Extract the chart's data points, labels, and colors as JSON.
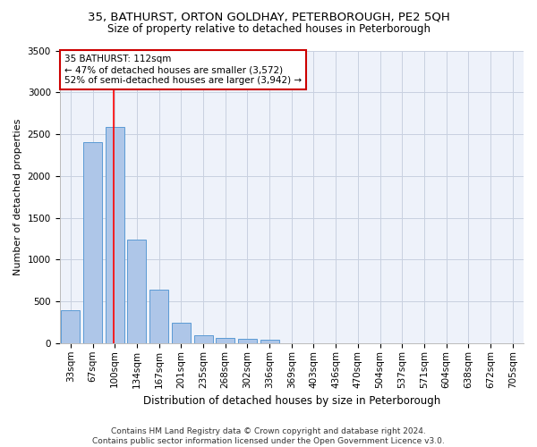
{
  "title": "35, BATHURST, ORTON GOLDHAY, PETERBOROUGH, PE2 5QH",
  "subtitle": "Size of property relative to detached houses in Peterborough",
  "xlabel": "Distribution of detached houses by size in Peterborough",
  "ylabel": "Number of detached properties",
  "categories": [
    "33sqm",
    "67sqm",
    "100sqm",
    "134sqm",
    "167sqm",
    "201sqm",
    "235sqm",
    "268sqm",
    "302sqm",
    "336sqm",
    "369sqm",
    "403sqm",
    "436sqm",
    "470sqm",
    "504sqm",
    "537sqm",
    "571sqm",
    "604sqm",
    "638sqm",
    "672sqm",
    "705sqm"
  ],
  "values": [
    390,
    2400,
    2590,
    1240,
    640,
    250,
    95,
    60,
    55,
    40,
    0,
    0,
    0,
    0,
    0,
    0,
    0,
    0,
    0,
    0,
    0
  ],
  "bar_color": "#aec6e8",
  "bar_edge_color": "#5b9bd5",
  "red_line_x": 1.95,
  "annotation_text": "35 BATHURST: 112sqm\n← 47% of detached houses are smaller (3,572)\n52% of semi-detached houses are larger (3,942) →",
  "annotation_box_color": "#ffffff",
  "annotation_box_edge_color": "#cc0000",
  "ylim": [
    0,
    3500
  ],
  "yticks": [
    0,
    500,
    1000,
    1500,
    2000,
    2500,
    3000,
    3500
  ],
  "footer": "Contains HM Land Registry data © Crown copyright and database right 2024.\nContains public sector information licensed under the Open Government Licence v3.0.",
  "bg_color": "#eef2fa",
  "grid_color": "#c8d0e0",
  "title_fontsize": 9.5,
  "subtitle_fontsize": 8.5,
  "xlabel_fontsize": 8.5,
  "ylabel_fontsize": 8,
  "tick_fontsize": 7.5,
  "annotation_fontsize": 7.5,
  "footer_fontsize": 6.5
}
